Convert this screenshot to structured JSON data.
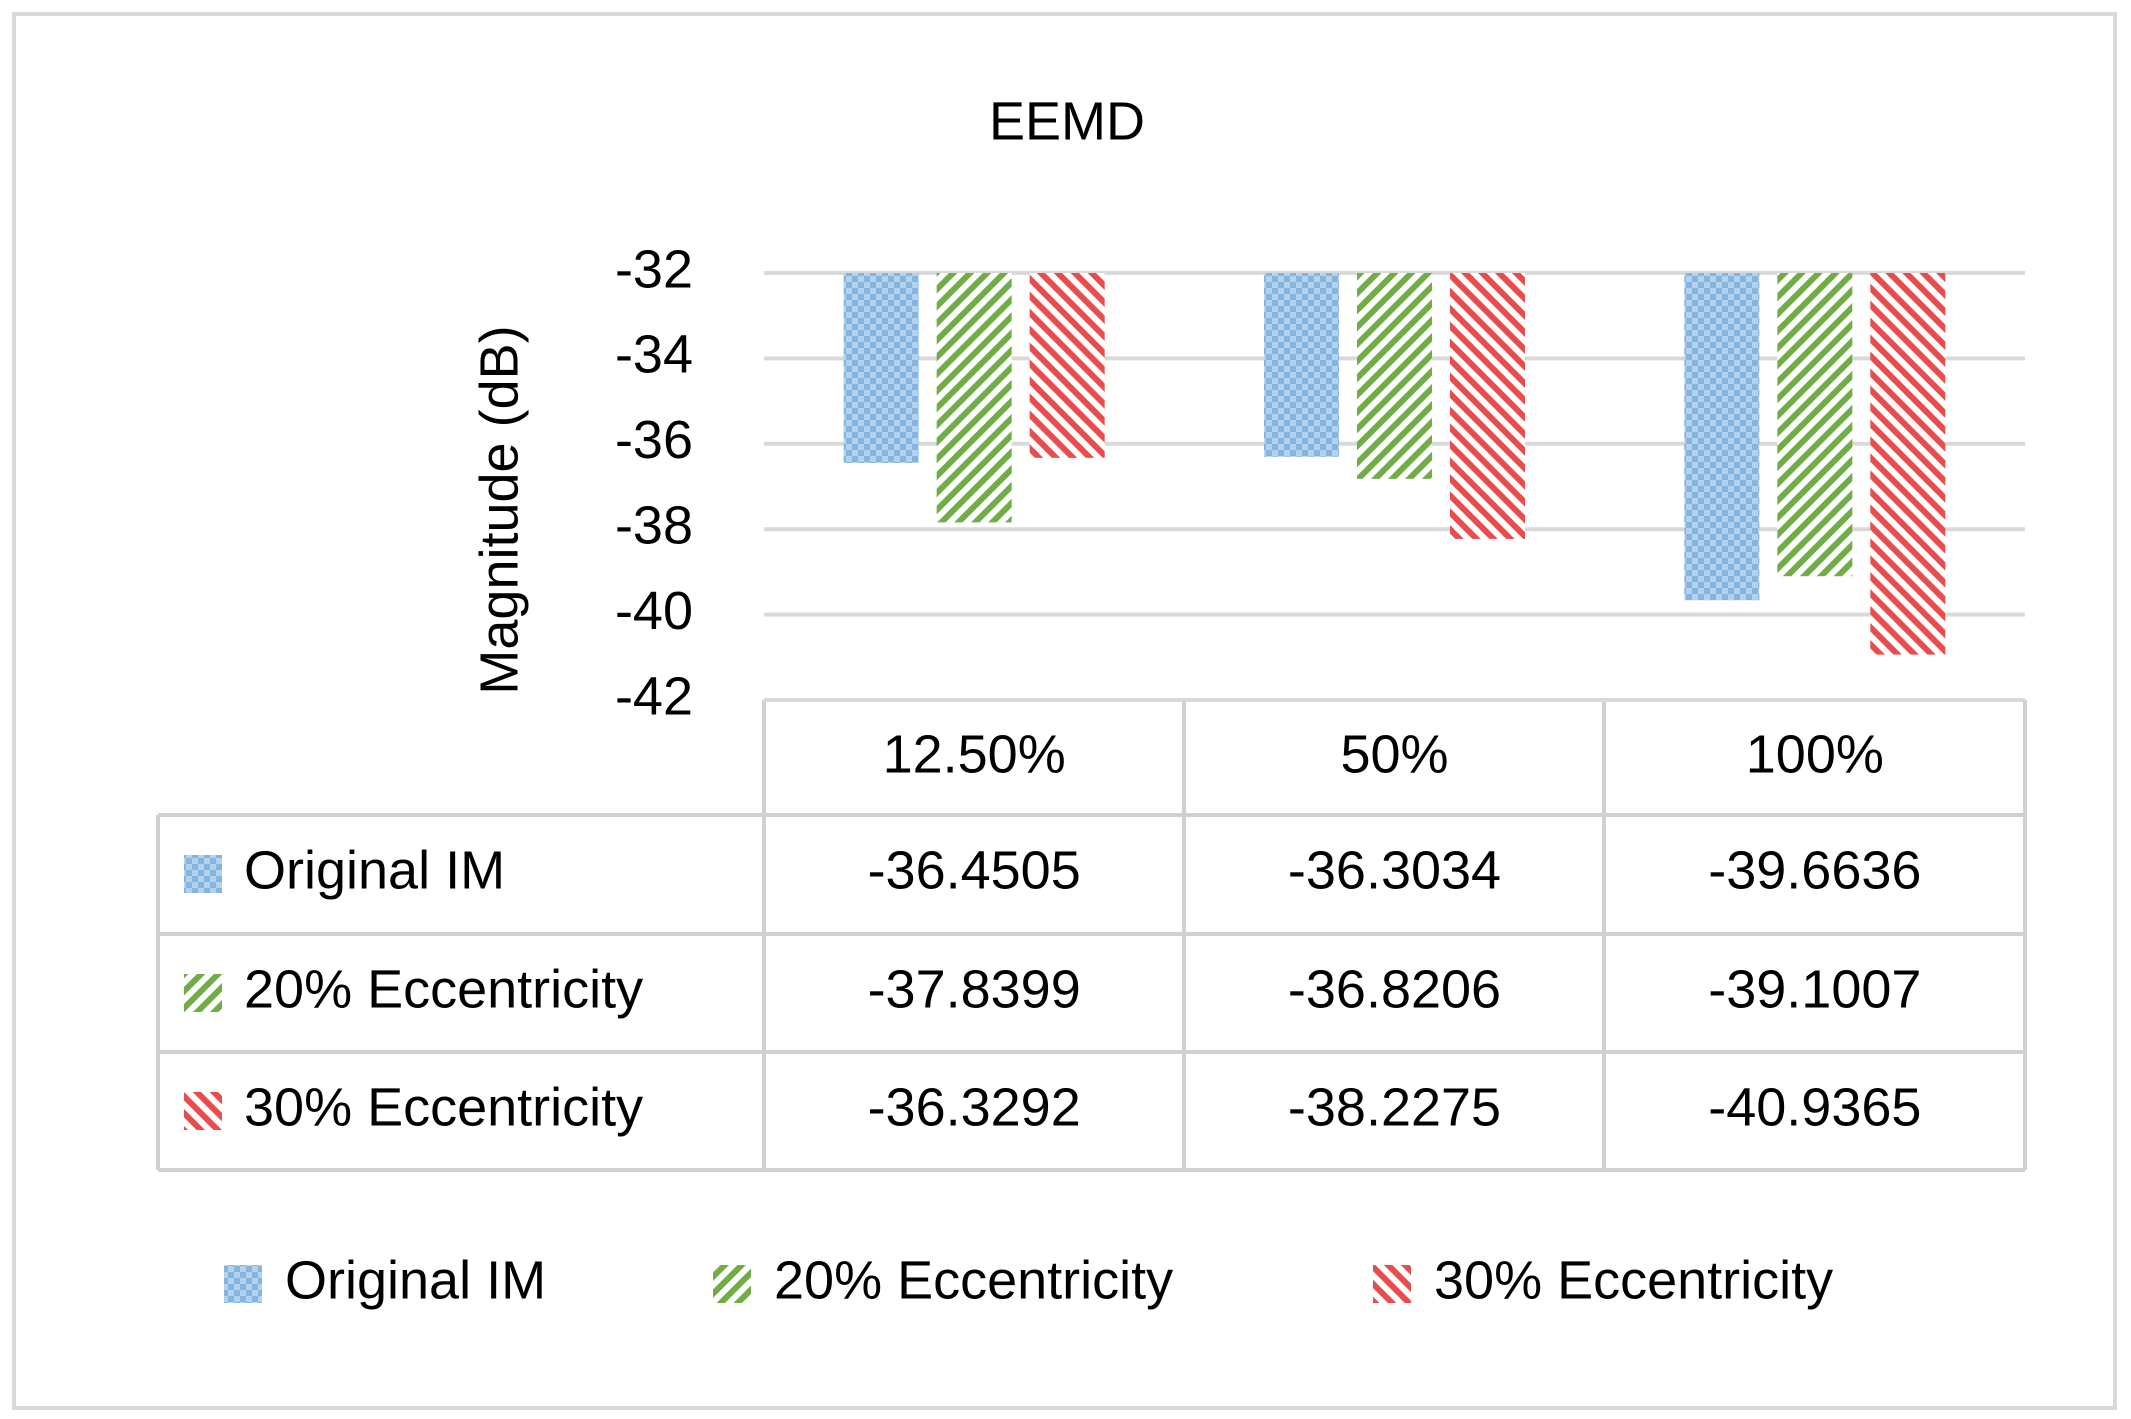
{
  "chart_data": {
    "type": "bar",
    "title": "EEMD",
    "y_label": "Magnitude (dB)",
    "categories": [
      "12.50%",
      "50%",
      "100%"
    ],
    "series": [
      {
        "name": "Original IM",
        "color": "#5b9bd5",
        "values": [
          -36.4505,
          -36.3034,
          -39.6636
        ]
      },
      {
        "name": "20% Eccentricity",
        "color": "#70ad47",
        "values": [
          -37.8399,
          -36.8206,
          -39.1007
        ]
      },
      {
        "name": "30% Eccentricity",
        "color": "#e84c4c",
        "values": [
          -36.3292,
          -38.2275,
          -40.9365
        ]
      }
    ],
    "ylim": [
      -42,
      -32
    ],
    "yticks": [
      -32,
      -34,
      -36,
      -38,
      -40,
      -42
    ],
    "grid": true
  }
}
